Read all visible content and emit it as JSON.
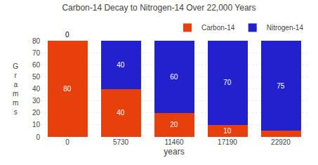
{
  "chart_data": {
    "type": "bar",
    "title": "Carbon-14 Decay to Nitrogen-14 Over 22,000 Years",
    "categories": [
      "0",
      "5730",
      "11460",
      "17190",
      "22920"
    ],
    "series": [
      {
        "name": "Carbon-14",
        "color": "#E8400C",
        "values": [
          80,
          40,
          20,
          10,
          5
        ],
        "value_labels": [
          "80",
          "40",
          "20",
          "10",
          null
        ]
      },
      {
        "name": "Nitrogen-14",
        "color": "#2222CC",
        "values": [
          0,
          40,
          60,
          70,
          75
        ]
      }
    ],
    "stacked": true,
    "data_labels": true,
    "xlabel": "years",
    "ylabel": "G\nr\na\nm\nm\ns",
    "ylim": [
      0,
      80
    ],
    "yticks": [
      0,
      10,
      20,
      30,
      40,
      50,
      60,
      70,
      80
    ],
    "grid": true,
    "legend": "upper right"
  }
}
